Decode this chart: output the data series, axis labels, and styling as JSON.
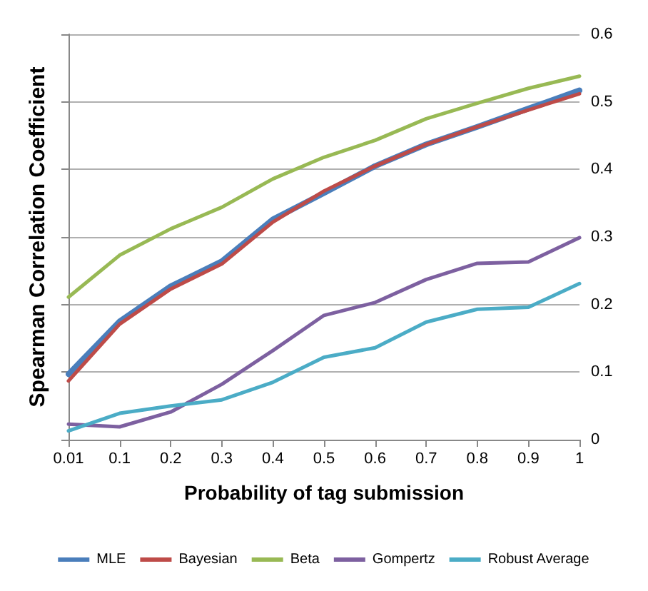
{
  "chart_data": {
    "type": "line",
    "xlabel": "Probability of tag submission",
    "ylabel": "Spearman Correlation Coefficient",
    "categories": [
      "0.01",
      "0.1",
      "0.2",
      "0.3",
      "0.4",
      "0.5",
      "0.6",
      "0.7",
      "0.8",
      "0.9",
      "1"
    ],
    "series": [
      {
        "name": "MLE",
        "color": "#4a7ebb",
        "values": [
          0.097,
          0.175,
          0.227,
          0.264,
          0.326,
          0.365,
          0.405,
          0.437,
          0.463,
          0.49,
          0.517
        ]
      },
      {
        "name": "Bayesian",
        "color": "#be4b48",
        "values": [
          0.087,
          0.171,
          0.223,
          0.26,
          0.322,
          0.368,
          0.405,
          0.437,
          0.463,
          0.488,
          0.512
        ]
      },
      {
        "name": "Beta",
        "color": "#98b954",
        "values": [
          0.211,
          0.273,
          0.312,
          0.344,
          0.386,
          0.418,
          0.443,
          0.475,
          0.498,
          0.52,
          0.538
        ]
      },
      {
        "name": "Gompertz",
        "color": "#7d60a0",
        "values": [
          0.023,
          0.019,
          0.041,
          0.082,
          0.132,
          0.184,
          0.203,
          0.237,
          0.261,
          0.263,
          0.299
        ]
      },
      {
        "name": "Robust Average",
        "color": "#4bacc6",
        "values": [
          0.013,
          0.039,
          0.05,
          0.059,
          0.085,
          0.122,
          0.136,
          0.174,
          0.193,
          0.196,
          0.231
        ]
      }
    ],
    "ylim": [
      0,
      0.6
    ],
    "yticks": [
      0,
      0.1,
      0.2,
      0.3,
      0.4,
      0.5,
      0.6
    ],
    "grid": "y",
    "legend": "bottom",
    "marker": "none",
    "line_style": "solid"
  }
}
